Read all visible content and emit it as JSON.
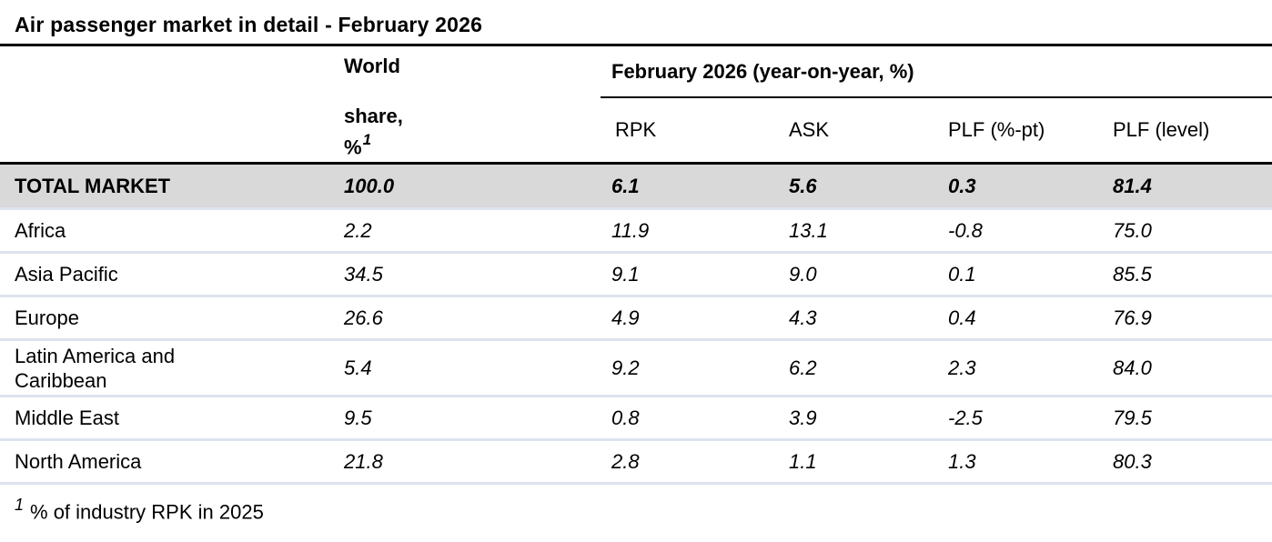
{
  "title": "Air passenger market in detail - February 2026",
  "header": {
    "world_share": {
      "line1": "World",
      "line2": "share,",
      "line3": "%",
      "footnote_ref": "1"
    },
    "group": "February 2026 (year-on-year, %)",
    "columns": [
      "RPK",
      "ASK",
      "PLF (%-pt)",
      "PLF (level)"
    ]
  },
  "rows": [
    {
      "region": "TOTAL MARKET",
      "world_share": "100.0",
      "rpk": "6.1",
      "ask": "5.6",
      "plf_pt": "0.3",
      "plf_level": "81.4"
    },
    {
      "region": "Africa",
      "world_share": "2.2",
      "rpk": "11.9",
      "ask": "13.1",
      "plf_pt": "-0.8",
      "plf_level": "75.0"
    },
    {
      "region": "Asia Pacific",
      "world_share": "34.5",
      "rpk": "9.1",
      "ask": "9.0",
      "plf_pt": "0.1",
      "plf_level": "85.5"
    },
    {
      "region": "Europe",
      "world_share": "26.6",
      "rpk": "4.9",
      "ask": "4.3",
      "plf_pt": "0.4",
      "plf_level": "76.9"
    },
    {
      "region": "Latin America and Caribbean",
      "world_share": "5.4",
      "rpk": "9.2",
      "ask": "6.2",
      "plf_pt": "2.3",
      "plf_level": "84.0"
    },
    {
      "region": "Middle East",
      "world_share": "9.5",
      "rpk": "0.8",
      "ask": "3.9",
      "plf_pt": "-2.5",
      "plf_level": "79.5"
    },
    {
      "region": "North America",
      "world_share": "21.8",
      "rpk": "2.8",
      "ask": "1.1",
      "plf_pt": "1.3",
      "plf_level": "80.3"
    }
  ],
  "footnote": {
    "ref": "1",
    "text": "% of industry RPK in 2025"
  },
  "colors": {
    "total_row_bg": "#d9d9d9",
    "row_separator": "#dde3ee",
    "rule": "#000000",
    "text": "#000000"
  }
}
